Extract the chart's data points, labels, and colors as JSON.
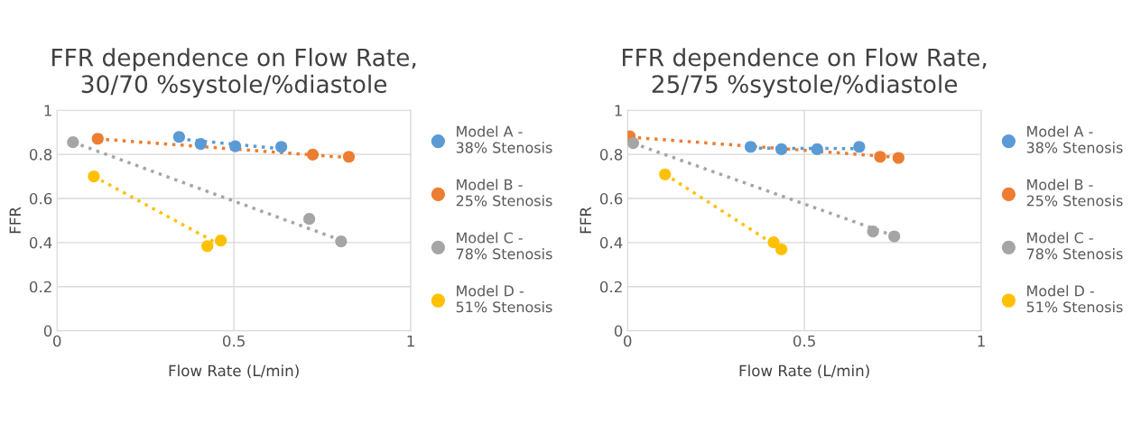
{
  "chart_data": [
    {
      "type": "scatter",
      "title": "FFR dependence on Flow Rate,\n30/70 %systole/%diastole",
      "xlabel": "Flow Rate (L/min)",
      "ylabel": "FFR",
      "xlim": [
        0,
        1
      ],
      "ylim": [
        0,
        1
      ],
      "xticks": [
        0,
        0.5,
        1
      ],
      "yticks": [
        0,
        0.2,
        0.4,
        0.6,
        0.8,
        1
      ],
      "grid": true,
      "legend": "right",
      "marker": "circle",
      "series": [
        {
          "name": "Model A -\n38% Stenosis",
          "color": "#5b9bd5",
          "x": [
            0.345,
            0.406,
            0.504,
            0.634
          ],
          "values": [
            0.879,
            0.847,
            0.837,
            0.834
          ]
        },
        {
          "name": "Model B -\n25% Stenosis",
          "color": "#ed7d31",
          "x": [
            0.115,
            0.723,
            0.825
          ],
          "values": [
            0.871,
            0.799,
            0.789
          ]
        },
        {
          "name": "Model C -\n78% Stenosis",
          "color": "#a5a5a5",
          "x": [
            0.045,
            0.713,
            0.803
          ],
          "values": [
            0.855,
            0.507,
            0.405
          ]
        },
        {
          "name": "Model D -\n51% Stenosis",
          "color": "#ffc000",
          "x": [
            0.104,
            0.425,
            0.463
          ],
          "values": [
            0.7,
            0.384,
            0.409
          ]
        },
        {
          "type": "line",
          "marker": "none",
          "line_style": "dotted",
          "color": "#5b9bd5",
          "x": [
            0.345,
            0.634
          ],
          "values": [
            0.87,
            0.825
          ]
        },
        {
          "type": "line",
          "marker": "none",
          "line_style": "dotted",
          "color": "#ed7d31",
          "x": [
            0.115,
            0.825
          ],
          "values": [
            0.87,
            0.785
          ]
        },
        {
          "type": "line",
          "marker": "none",
          "line_style": "dotted",
          "color": "#a5a5a5",
          "x": [
            0.045,
            0.803
          ],
          "values": [
            0.855,
            0.41
          ]
        },
        {
          "type": "line",
          "marker": "none",
          "line_style": "dotted",
          "color": "#ffc000",
          "x": [
            0.104,
            0.46
          ],
          "values": [
            0.7,
            0.39
          ]
        }
      ]
    },
    {
      "type": "scatter",
      "title": "FFR dependence on Flow Rate,\n25/75 %systole/%diastole",
      "xlabel": "Flow Rate (L/min)",
      "ylabel": "FFR",
      "xlim": [
        0,
        1
      ],
      "ylim": [
        0,
        1
      ],
      "xticks": [
        0,
        0.5,
        1
      ],
      "yticks": [
        0,
        0.2,
        0.4,
        0.6,
        0.8,
        1
      ],
      "grid": true,
      "legend": "right",
      "marker": "circle",
      "series": [
        {
          "name": "Model A -\n38% Stenosis",
          "color": "#5b9bd5",
          "x": [
            0.348,
            0.435,
            0.536,
            0.655
          ],
          "values": [
            0.834,
            0.823,
            0.823,
            0.834
          ]
        },
        {
          "name": "Model B -\n25% Stenosis",
          "color": "#ed7d31",
          "x": [
            0.006,
            0.714,
            0.766
          ],
          "values": [
            0.882,
            0.789,
            0.784
          ]
        },
        {
          "name": "Model C -\n78% Stenosis",
          "color": "#a5a5a5",
          "x": [
            0.016,
            0.694,
            0.754
          ],
          "values": [
            0.851,
            0.45,
            0.428
          ]
        },
        {
          "name": "Model D -\n51% Stenosis",
          "color": "#ffc000",
          "x": [
            0.106,
            0.413,
            0.435
          ],
          "values": [
            0.709,
            0.401,
            0.369
          ]
        },
        {
          "type": "line",
          "marker": "none",
          "line_style": "dotted",
          "color": "#5b9bd5",
          "x": [
            0.348,
            0.655
          ],
          "values": [
            0.828,
            0.826
          ]
        },
        {
          "type": "line",
          "marker": "none",
          "line_style": "dotted",
          "color": "#ed7d31",
          "x": [
            0.006,
            0.766
          ],
          "values": [
            0.878,
            0.786
          ]
        },
        {
          "type": "line",
          "marker": "none",
          "line_style": "dotted",
          "color": "#a5a5a5",
          "x": [
            0.016,
            0.754
          ],
          "values": [
            0.85,
            0.43
          ]
        },
        {
          "type": "line",
          "marker": "none",
          "line_style": "dotted",
          "color": "#ffc000",
          "x": [
            0.106,
            0.435
          ],
          "values": [
            0.71,
            0.37
          ]
        }
      ]
    }
  ]
}
